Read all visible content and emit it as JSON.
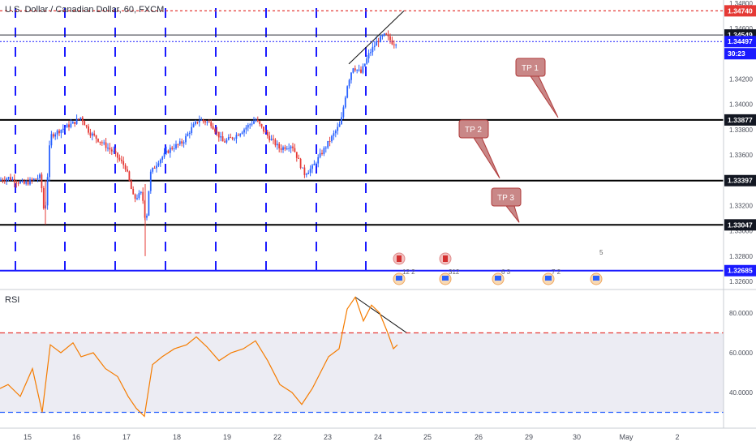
{
  "header": {
    "title": "U.S. Dollar / Canadian Dollar, 60, FXCM"
  },
  "rsi": {
    "label": "RSI",
    "overbought": 70,
    "oversold": 30,
    "ticks": [
      "80.0000",
      "60.0000",
      "40.0000"
    ]
  },
  "price_axis": {
    "ticks": [
      "1.34800",
      "1.34600",
      "1.34400",
      "1.34200",
      "1.34000",
      "1.33800",
      "1.33600",
      "1.33400",
      "1.33200",
      "1.33000",
      "1.32800",
      "1.32600"
    ]
  },
  "price_labels": {
    "resistance": "1.34740",
    "high": "1.34549",
    "current": "1.34497",
    "countdown": "30:23",
    "tp1_level": "1.33877",
    "tp2_level": "1.33397",
    "tp3_level": "1.33047",
    "low": "1.32685"
  },
  "targets": [
    {
      "label": "TP 1"
    },
    {
      "label": "TP 2"
    },
    {
      "label": "TP 3"
    }
  ],
  "events": [
    {
      "count": "12 2"
    },
    {
      "count": "312"
    },
    {
      "count": "6 3"
    },
    {
      "count": "7 2"
    },
    {
      "count": "5"
    }
  ],
  "x_axis": {
    "labels": [
      "15",
      "16",
      "17",
      "18",
      "19",
      "22",
      "23",
      "24",
      "25",
      "26",
      "29",
      "30",
      "May",
      "2"
    ]
  },
  "colors": {
    "up": "#2962ff",
    "down": "#e53935",
    "rsi": "#f57c00",
    "resistance": "#e53935",
    "support": "#000000",
    "target": "#b03a3a",
    "session": "#1a1aff"
  },
  "chart_data": [
    {
      "type": "candlestick",
      "title": "U.S. Dollar / Canadian Dollar, 60, FXCM",
      "x": [
        "15",
        "16",
        "17",
        "18",
        "19",
        "22",
        "23",
        "24"
      ],
      "close": [
        1.3345,
        1.3385,
        1.331,
        1.3388,
        1.3372,
        1.3345,
        1.339,
        1.345
      ],
      "ylim": [
        1.3255,
        1.3485
      ],
      "levels": [
        1.3474,
        1.33877,
        1.33397,
        1.33047,
        1.32685
      ],
      "annotations": [
        "TP 1",
        "TP 2",
        "TP 3"
      ]
    },
    {
      "type": "line",
      "title": "RSI",
      "x": [
        "15",
        "16",
        "17",
        "18",
        "19",
        "22",
        "23",
        "24"
      ],
      "y": [
        45,
        58,
        35,
        62,
        55,
        40,
        55,
        68
      ],
      "ylim": [
        25,
        95
      ],
      "levels": [
        70,
        30
      ]
    }
  ]
}
